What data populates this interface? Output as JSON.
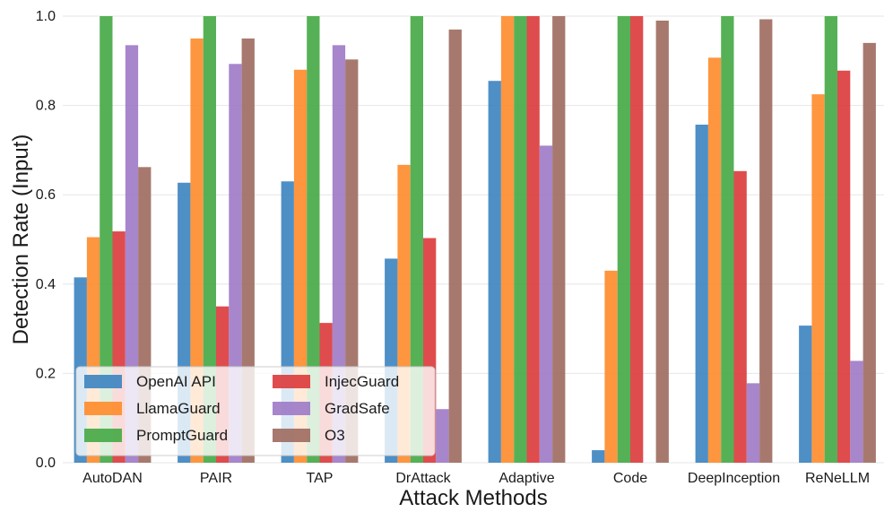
{
  "chart_data": {
    "type": "bar",
    "title": "",
    "xlabel": "Attack Methods",
    "ylabel": "Detection Rate (Input)",
    "ylim": [
      0,
      1.0
    ],
    "yticks": [
      "0.0",
      "0.2",
      "0.4",
      "0.6",
      "0.8",
      "1.0"
    ],
    "grid": true,
    "legend_position": "lower-left",
    "categories": [
      "AutoDAN",
      "PAIR",
      "TAP",
      "DrAttack",
      "Adaptive",
      "Code",
      "DeepInception",
      "ReNeLLM"
    ],
    "series": [
      {
        "name": "OpenAI API",
        "color": "#3f86c1",
        "values": [
          0.415,
          0.627,
          0.63,
          0.457,
          0.855,
          0.028,
          0.757,
          0.307
        ]
      },
      {
        "name": "LlamaGuard",
        "color": "#fe8d2f",
        "values": [
          0.505,
          0.95,
          0.88,
          0.667,
          1.0,
          0.43,
          0.907,
          0.825
        ]
      },
      {
        "name": "PromptGuard",
        "color": "#48aa48",
        "values": [
          1.0,
          1.0,
          1.0,
          1.0,
          1.0,
          1.0,
          1.0,
          1.0
        ]
      },
      {
        "name": "InjecGuard",
        "color": "#dc3d3e",
        "values": [
          0.518,
          0.35,
          0.313,
          0.503,
          1.0,
          1.0,
          0.653,
          0.878
        ]
      },
      {
        "name": "GradSafe",
        "color": "#a07cc8",
        "values": [
          0.935,
          0.893,
          0.935,
          0.12,
          0.71,
          0.0,
          0.178,
          0.228
        ]
      },
      {
        "name": "O3",
        "color": "#a06e62",
        "values": [
          0.662,
          0.95,
          0.903,
          0.97,
          1.0,
          0.99,
          0.993,
          0.94
        ]
      }
    ]
  }
}
